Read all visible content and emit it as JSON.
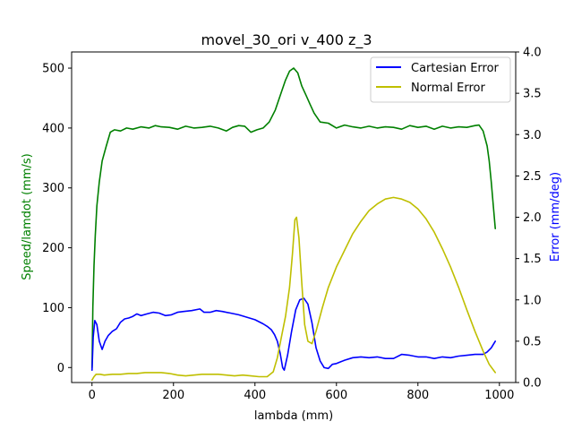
{
  "chart_data": {
    "type": "line",
    "title": "movel_30_ori v_400 z_3",
    "xlabel": "lambda (mm)",
    "ylabel_left": "Speed/lamdot (mm/s)",
    "ylabel_right": "Error (mm/deg)",
    "xlim": [
      -50,
      1040
    ],
    "ylim_left": [
      -25,
      527
    ],
    "ylim_right": [
      0,
      4.0
    ],
    "xticks": [
      "0",
      "200",
      "400",
      "600",
      "800",
      "1000"
    ],
    "yticks_left": [
      "0",
      "100",
      "200",
      "300",
      "400",
      "500"
    ],
    "yticks_right": [
      "0.0",
      "0.5",
      "1.0",
      "1.5",
      "2.0",
      "2.5",
      "3.0",
      "3.5",
      "4.0"
    ],
    "grid": false,
    "legend_position": "top-right",
    "colors": {
      "speed": "#008000",
      "cartesian": "#0000ff",
      "normal": "#bfbf00",
      "right_axis_label": "#0000ff",
      "left_axis_label": "#008000"
    },
    "series": [
      {
        "axis": "left",
        "color": "#008000",
        "x": [
          0,
          2,
          5,
          8,
          12,
          18,
          25,
          35,
          45,
          55,
          70,
          85,
          100,
          120,
          140,
          155,
          170,
          190,
          210,
          230,
          250,
          270,
          290,
          310,
          330,
          345,
          360,
          375,
          390,
          405,
          420,
          435,
          450,
          465,
          475,
          485,
          495,
          505,
          515,
          525,
          535,
          545,
          560,
          580,
          600,
          620,
          640,
          660,
          680,
          700,
          720,
          740,
          760,
          780,
          800,
          820,
          840,
          860,
          880,
          900,
          920,
          940,
          950,
          960,
          970,
          975,
          980,
          985,
          990
        ],
        "y": [
          0,
          100,
          170,
          220,
          270,
          310,
          345,
          370,
          393,
          397,
          395,
          400,
          398,
          402,
          400,
          404,
          402,
          401,
          398,
          403,
          400,
          401,
          403,
          400,
          395,
          401,
          404,
          403,
          393,
          397,
          400,
          410,
          430,
          460,
          480,
          495,
          500,
          492,
          470,
          455,
          440,
          425,
          410,
          408,
          400,
          405,
          402,
          400,
          403,
          400,
          402,
          401,
          398,
          404,
          401,
          403,
          398,
          403,
          400,
          402,
          401,
          404,
          405,
          395,
          370,
          345,
          310,
          270,
          232
        ]
      },
      {
        "axis": "right",
        "name": "Cartesian Error",
        "color": "#0000ff",
        "x": [
          0,
          3,
          7,
          12,
          18,
          25,
          32,
          40,
          50,
          60,
          70,
          80,
          90,
          100,
          110,
          120,
          135,
          150,
          165,
          180,
          195,
          210,
          225,
          245,
          265,
          275,
          290,
          305,
          320,
          340,
          360,
          380,
          400,
          420,
          430,
          440,
          448,
          455,
          462,
          468,
          472,
          480,
          490,
          500,
          510,
          520,
          530,
          540,
          550,
          560,
          570,
          580,
          590,
          600,
          620,
          640,
          660,
          680,
          700,
          720,
          740,
          760,
          780,
          800,
          820,
          840,
          860,
          880,
          900,
          920,
          940,
          960,
          970,
          980,
          990
        ],
        "y": [
          0.15,
          0.55,
          0.75,
          0.7,
          0.5,
          0.4,
          0.5,
          0.57,
          0.62,
          0.65,
          0.73,
          0.77,
          0.78,
          0.8,
          0.83,
          0.81,
          0.83,
          0.85,
          0.84,
          0.81,
          0.82,
          0.85,
          0.86,
          0.87,
          0.89,
          0.85,
          0.85,
          0.87,
          0.86,
          0.84,
          0.82,
          0.79,
          0.76,
          0.71,
          0.68,
          0.64,
          0.58,
          0.5,
          0.35,
          0.18,
          0.15,
          0.33,
          0.62,
          0.88,
          1.0,
          1.02,
          0.95,
          0.72,
          0.42,
          0.26,
          0.18,
          0.17,
          0.22,
          0.23,
          0.27,
          0.3,
          0.31,
          0.3,
          0.31,
          0.29,
          0.29,
          0.34,
          0.33,
          0.31,
          0.31,
          0.29,
          0.31,
          0.3,
          0.32,
          0.33,
          0.34,
          0.34,
          0.37,
          0.42,
          0.5
        ]
      },
      {
        "axis": "right",
        "name": "Normal Error",
        "color": "#bfbf00",
        "x": [
          0,
          5,
          10,
          20,
          30,
          50,
          70,
          90,
          110,
          130,
          150,
          170,
          190,
          210,
          230,
          250,
          270,
          290,
          310,
          330,
          350,
          370,
          390,
          410,
          430,
          445,
          455,
          465,
          475,
          485,
          492,
          498,
          502,
          508,
          515,
          522,
          530,
          540,
          550,
          565,
          580,
          600,
          620,
          640,
          660,
          680,
          700,
          720,
          740,
          760,
          780,
          800,
          820,
          840,
          860,
          880,
          900,
          920,
          940,
          960,
          975,
          990
        ],
        "y": [
          0.03,
          0.07,
          0.1,
          0.1,
          0.09,
          0.1,
          0.1,
          0.11,
          0.11,
          0.12,
          0.12,
          0.12,
          0.11,
          0.09,
          0.08,
          0.09,
          0.1,
          0.1,
          0.1,
          0.09,
          0.08,
          0.09,
          0.08,
          0.07,
          0.07,
          0.13,
          0.3,
          0.55,
          0.8,
          1.15,
          1.55,
          1.97,
          2.0,
          1.75,
          1.2,
          0.7,
          0.5,
          0.47,
          0.62,
          0.9,
          1.15,
          1.4,
          1.6,
          1.8,
          1.95,
          2.08,
          2.16,
          2.22,
          2.24,
          2.22,
          2.18,
          2.1,
          1.98,
          1.82,
          1.62,
          1.4,
          1.15,
          0.88,
          0.62,
          0.38,
          0.22,
          0.12
        ]
      }
    ]
  }
}
